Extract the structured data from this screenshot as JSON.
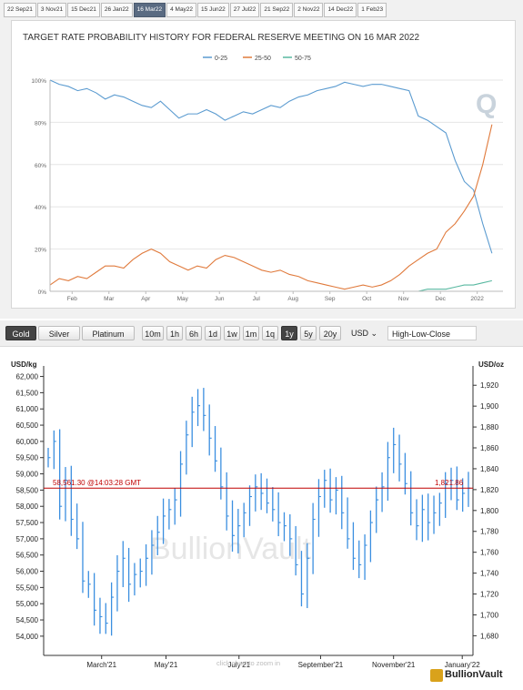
{
  "meeting_tabs": [
    "22 Sep21",
    "3 Nov21",
    "15 Dec21",
    "26 Jan22",
    "16 Mar22",
    "4 May22",
    "15 Jun22",
    "27 Jul22",
    "21 Sep22",
    "2 Nov22",
    "14 Dec22",
    "1 Feb23"
  ],
  "active_tab_index": 4,
  "toolbar": {
    "metals": [
      "Gold",
      "Silver",
      "Platinum"
    ],
    "active_metal": "Gold",
    "ranges": [
      "10m",
      "1h",
      "6h",
      "1d",
      "1w",
      "1m",
      "1q",
      "1y",
      "5y",
      "20y"
    ],
    "active_range": "1y",
    "currency": "USD",
    "chart_style": "High-Low-Close"
  },
  "gold_overlay": {
    "price_label": "58,561.30 @14:03:28 GMT",
    "right_price": "1,821.86",
    "hint": "click chart to zoom in",
    "watermark": "BullionVault",
    "logo_text": "BullionVault"
  },
  "colors": {
    "s0": "#5b9bd0",
    "s1": "#e07a3c",
    "s2": "#58b8a0",
    "gold_bars": "#3b8fe0",
    "price_line": "#c00000",
    "tab_active": "#5a6b82"
  },
  "chart_data": [
    {
      "type": "line",
      "title": "TARGET RATE PROBABILITY HISTORY FOR FEDERAL RESERVE MEETING ON 16 MAR 2022",
      "x_ticks": [
        "Feb",
        "Mar",
        "Apr",
        "May",
        "Jun",
        "Jul",
        "Aug",
        "Sep",
        "Oct",
        "Nov",
        "Dec",
        "2022"
      ],
      "y_ticks": [
        "0%",
        "20%",
        "40%",
        "60%",
        "80%",
        "100%"
      ],
      "ylim": [
        0,
        100
      ],
      "legend_position": "top",
      "x": [
        0,
        0.25,
        0.5,
        0.75,
        1,
        1.25,
        1.5,
        1.75,
        2,
        2.25,
        2.5,
        2.75,
        3,
        3.25,
        3.5,
        3.75,
        4,
        4.25,
        4.5,
        4.75,
        5,
        5.25,
        5.5,
        5.75,
        6,
        6.25,
        6.5,
        6.75,
        7,
        7.25,
        7.5,
        7.75,
        8,
        8.25,
        8.5,
        8.75,
        9,
        9.25,
        9.5,
        9.75,
        10,
        10.25,
        10.5,
        10.75,
        11,
        11.25,
        11.5,
        11.75,
        12
      ],
      "series": [
        {
          "name": "0-25",
          "values": [
            100,
            98,
            97,
            95,
            96,
            94,
            91,
            93,
            92,
            90,
            88,
            87,
            90,
            86,
            82,
            84,
            84,
            86,
            84,
            81,
            83,
            85,
            84,
            86,
            88,
            87,
            90,
            92,
            93,
            95,
            96,
            97,
            99,
            98,
            97,
            98,
            98,
            97,
            96,
            95,
            83,
            81,
            78,
            75,
            62,
            52,
            48,
            32,
            18
          ]
        },
        {
          "name": "25-50",
          "values": [
            3,
            6,
            5,
            7,
            6,
            9,
            12,
            12,
            11,
            15,
            18,
            20,
            18,
            14,
            12,
            10,
            12,
            11,
            15,
            17,
            16,
            14,
            12,
            10,
            9,
            10,
            8,
            7,
            5,
            4,
            3,
            2,
            1,
            2,
            3,
            2,
            3,
            5,
            8,
            12,
            15,
            18,
            20,
            28,
            32,
            38,
            45,
            60,
            79
          ]
        },
        {
          "name": "50-75",
          "values": [
            0,
            0,
            0,
            0,
            0,
            0,
            0,
            0,
            0,
            0,
            0,
            0,
            0,
            0,
            0,
            0,
            0,
            0,
            0,
            0,
            0,
            0,
            0,
            0,
            0,
            0,
            0,
            0,
            0,
            0,
            0,
            0,
            0,
            0,
            0,
            0,
            0,
            0,
            0,
            0,
            0,
            1,
            1,
            1,
            2,
            3,
            3,
            4,
            5
          ]
        }
      ]
    },
    {
      "type": "bar",
      "style": "high-low-close",
      "ylabel": "USD/kg",
      "y2label": "USD/oz",
      "ylim": [
        53800,
        62100
      ],
      "y_ticks": [
        "54,000",
        "54,500",
        "55,000",
        "55,500",
        "56,000",
        "56,500",
        "57,000",
        "57,500",
        "58,000",
        "58,500",
        "59,000",
        "59,500",
        "60,000",
        "60,500",
        "61,000",
        "61,500",
        "62,000"
      ],
      "y2_ticks": [
        "1,680",
        "1,700",
        "1,720",
        "1,740",
        "1,760",
        "1,780",
        "1,800",
        "1,820",
        "1,840",
        "1,860",
        "1,880",
        "1,900",
        "1,920"
      ],
      "x_ticks": [
        "March'21",
        "May'21",
        "July'21",
        "September'21",
        "November'21",
        "January'22"
      ],
      "current_price": 58561.3,
      "close": [
        59500,
        60000,
        58000,
        58800,
        57600,
        57000,
        55700,
        55600,
        54800,
        54600,
        54400,
        55200,
        56000,
        56400,
        55600,
        55900,
        56000,
        56400,
        56800,
        57200,
        57700,
        57900,
        58200,
        59300,
        60200,
        60900,
        61100,
        60800,
        60100,
        59400,
        58600,
        57700,
        57100,
        57400,
        57800,
        58300,
        58600,
        58400,
        58100,
        57900,
        57500,
        57400,
        57000,
        56200,
        55300,
        56400,
        57600,
        58300,
        58800,
        58200,
        58500,
        57800,
        57000,
        56400,
        56200,
        56800,
        57500,
        58200,
        58600,
        59500,
        59900,
        59300,
        58700,
        57800,
        57400,
        57900,
        57500,
        57800,
        58100,
        58700,
        58800,
        58200,
        58400,
        58561
      ]
    }
  ]
}
